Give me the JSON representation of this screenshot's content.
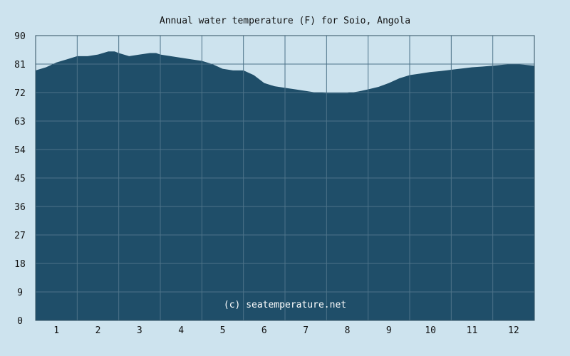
{
  "chart_data": {
    "type": "area",
    "title": "Annual water temperature (F) for Soio, Angola",
    "xlabel": "",
    "ylabel": "",
    "x_ticks": [
      "1",
      "2",
      "3",
      "4",
      "5",
      "6",
      "7",
      "8",
      "9",
      "10",
      "11",
      "12"
    ],
    "y_ticks": [
      "90",
      "81",
      "72",
      "63",
      "54",
      "45",
      "36",
      "27",
      "18",
      "9",
      "0"
    ],
    "xlim": [
      0.5,
      12.5
    ],
    "ylim": [
      0,
      90
    ],
    "grid": true,
    "series": [
      {
        "x": [
          0.5,
          0.75,
          1.0,
          1.25,
          1.5,
          1.75,
          2.0,
          2.25,
          2.4,
          2.5,
          2.75,
          3.0,
          3.25,
          3.4,
          3.5,
          3.75,
          4.0,
          4.25,
          4.5,
          4.75,
          5.0,
          5.25,
          5.5,
          5.75,
          6.0,
          6.25,
          6.5,
          6.75,
          7.0,
          7.25,
          7.5,
          7.75,
          8.0,
          8.25,
          8.5,
          8.75,
          9.0,
          9.25,
          9.5,
          9.75,
          10.0,
          10.25,
          10.5,
          10.75,
          11.0,
          11.25,
          11.5,
          11.75,
          12.0,
          12.25,
          12.5
        ],
        "values": [
          79.0,
          80.0,
          81.5,
          82.5,
          83.5,
          83.5,
          84.0,
          85.0,
          85.0,
          84.5,
          83.5,
          84.0,
          84.5,
          84.5,
          84.0,
          83.5,
          83.0,
          82.5,
          82.0,
          81.0,
          79.5,
          79.0,
          79.0,
          77.5,
          75.0,
          74.0,
          73.5,
          73.0,
          72.5,
          72.0,
          71.8,
          71.8,
          71.8,
          72.3,
          73.0,
          73.8,
          75.0,
          76.5,
          77.5,
          78.0,
          78.5,
          78.8,
          79.2,
          79.6,
          80.0,
          80.2,
          80.5,
          80.8,
          81.0,
          80.8,
          80.5
        ]
      }
    ],
    "colors": {
      "background": "#cde3ee",
      "plot_background": "#cde3ee",
      "fill": "#1f4e69",
      "grid": "#4d7389",
      "axis": "#304f60"
    },
    "watermark": "(c) seatemperature.net"
  }
}
